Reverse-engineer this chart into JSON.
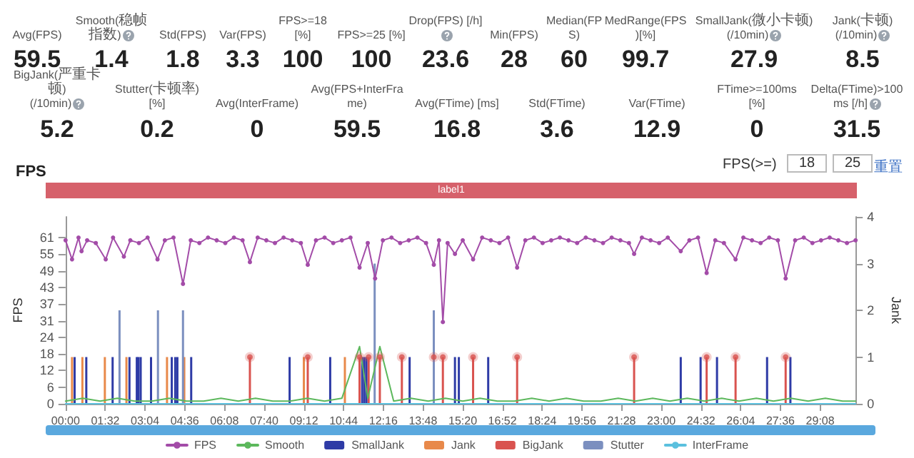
{
  "chart_data": [
    {
      "type": "other",
      "annotations": [
        "Avg(FPS)",
        "59.5",
        "Smooth(稳帧指数)",
        "1.4",
        "Std(FPS)",
        "1.8",
        "Var(FPS)",
        "3.3",
        "FPS>=18 [%]",
        "100",
        "FPS>=25 [%]",
        "100",
        "Drop(FPS) [/h]",
        "23.6",
        "Min(FPS)",
        "28",
        "Median(FPS)",
        "60",
        "MedRange(FPS)[%]",
        "99.7",
        "SmallJank(微小卡顿)\n(/10min)",
        "27.9",
        "Jank(卡顿)\n(/10min)",
        "8.5",
        "BigJank(严重卡顿)\n(/10min)",
        "5.2",
        "Stutter(卡顿率) [%]",
        "0.2",
        "Avg(InterFrame)",
        "0",
        "Avg(FPS+InterFrame)",
        "59.5",
        "Avg(FTime) [ms]",
        "16.8",
        "Std(FTime)",
        "3.6",
        "Var(FTime)",
        "12.9",
        "FTime>=100ms [%]",
        "0",
        "Delta(FTime)>100ms [/h]",
        "31.5"
      ]
    },
    {
      "type": "line",
      "title": "FPS",
      "ylabel": "FPS",
      "y2label": "Jank",
      "legend": "bottom",
      "annotations": [
        "FPS(>=)",
        "18",
        "25",
        "重置",
        "label1"
      ],
      "xlim": [
        0,
        1830
      ],
      "xticks": [
        {
          "value": 0,
          "label": "00:00"
        },
        {
          "value": 92,
          "label": "01:32"
        },
        {
          "value": 184,
          "label": "03:04"
        },
        {
          "value": 276,
          "label": "04:36"
        },
        {
          "value": 368,
          "label": "06:08"
        },
        {
          "value": 460,
          "label": "07:40"
        },
        {
          "value": 552,
          "label": "09:12"
        },
        {
          "value": 644,
          "label": "10:44"
        },
        {
          "value": 736,
          "label": "12:16"
        },
        {
          "value": 828,
          "label": "13:48"
        },
        {
          "value": 920,
          "label": "15:20"
        },
        {
          "value": 1012,
          "label": "16:52"
        },
        {
          "value": 1104,
          "label": "18:24"
        },
        {
          "value": 1196,
          "label": "19:56"
        },
        {
          "value": 1288,
          "label": "21:28"
        },
        {
          "value": 1380,
          "label": "23:00"
        },
        {
          "value": 1472,
          "label": "24:32"
        },
        {
          "value": 1564,
          "label": "26:04"
        },
        {
          "value": 1656,
          "label": "27:36"
        },
        {
          "value": 1748,
          "label": "29:08"
        }
      ],
      "ylim": [
        0,
        68.6
      ],
      "yticks": [
        0,
        {
          "value": 6.1,
          "label": "6"
        },
        {
          "value": 12.2,
          "label": "12"
        },
        {
          "value": 18.3,
          "label": "18"
        },
        {
          "value": 24.4,
          "label": "24"
        },
        {
          "value": 30.5,
          "label": "31"
        },
        {
          "value": 36.6,
          "label": "37"
        },
        {
          "value": 42.7,
          "label": "43"
        },
        {
          "value": 48.8,
          "label": "49"
        },
        {
          "value": 54.9,
          "label": "55"
        },
        61
      ],
      "y2lim": [
        0,
        4
      ],
      "y2ticks": [
        0,
        1,
        2,
        3,
        4
      ],
      "series": [
        {
          "name": "FPS",
          "type": "line",
          "marker": "circle",
          "color": "#a34ca8",
          "x": [
            0,
            15,
            30,
            37,
            50,
            70,
            93,
            110,
            135,
            150,
            170,
            190,
            213,
            230,
            250,
            272,
            290,
            310,
            330,
            350,
            370,
            390,
            410,
            427,
            445,
            465,
            485,
            505,
            525,
            545,
            561,
            580,
            600,
            620,
            640,
            660,
            681,
            700,
            717,
            735,
            755,
            775,
            795,
            815,
            835,
            853,
            865,
            874,
            885,
            902,
            920,
            944,
            965,
            985,
            1005,
            1025,
            1046,
            1065,
            1085,
            1105,
            1125,
            1145,
            1165,
            1185,
            1205,
            1225,
            1245,
            1265,
            1285,
            1305,
            1317,
            1335,
            1355,
            1375,
            1395,
            1425,
            1445,
            1465,
            1485,
            1505,
            1525,
            1552,
            1570,
            1590,
            1610,
            1630,
            1650,
            1668,
            1690,
            1710,
            1730,
            1750,
            1770,
            1790,
            1810,
            1830
          ],
          "values": [
            60,
            53,
            61,
            56,
            60,
            59,
            53,
            61,
            54,
            60,
            59,
            61,
            53,
            60,
            61,
            44,
            60,
            59,
            61,
            60,
            59,
            61,
            60,
            52,
            61,
            60,
            59,
            61,
            60,
            59,
            51,
            60,
            61,
            59,
            60,
            61,
            50,
            59,
            46,
            60,
            61,
            59,
            60,
            61,
            59,
            51,
            60,
            30,
            59,
            55,
            60,
            53,
            61,
            60,
            59,
            61,
            50,
            60,
            61,
            59,
            60,
            61,
            60,
            59,
            61,
            60,
            59,
            61,
            60,
            59,
            55,
            61,
            60,
            59,
            61,
            56,
            60,
            61,
            48,
            60,
            59,
            53,
            61,
            60,
            59,
            61,
            60,
            46,
            60,
            61,
            59,
            60,
            61,
            60,
            59,
            60
          ]
        },
        {
          "name": "Smooth",
          "type": "line",
          "marker": "none",
          "color": "#5cb85c",
          "x": [
            0,
            40,
            80,
            120,
            160,
            200,
            240,
            280,
            320,
            360,
            400,
            440,
            480,
            520,
            560,
            600,
            640,
            681,
            700,
            728,
            760,
            800,
            840,
            880,
            920,
            960,
            1000,
            1040,
            1080,
            1120,
            1160,
            1200,
            1240,
            1280,
            1320,
            1360,
            1400,
            1440,
            1480,
            1520,
            1560,
            1600,
            1640,
            1680,
            1720,
            1760,
            1800,
            1830
          ],
          "values": [
            1,
            2,
            1,
            2,
            1,
            1,
            2,
            1,
            1,
            2,
            1,
            2,
            1,
            1,
            2,
            1,
            2,
            21,
            2,
            21,
            1,
            2,
            1,
            2,
            1,
            2,
            1,
            1,
            2,
            1,
            2,
            1,
            1,
            2,
            1,
            2,
            1,
            2,
            1,
            2,
            1,
            2,
            1,
            2,
            1,
            2,
            1,
            1
          ]
        },
        {
          "name": "SmallJank",
          "type": "bar",
          "axis": "y2",
          "color": "#2e3ba6",
          "x": [
            21,
            48,
            109,
            148,
            165,
            169,
            174,
            198,
            246,
            254,
            259,
            291,
            519,
            613,
            687,
            692,
            697,
            797,
            902,
            911,
            979,
            1425,
            1471,
            1509,
            1625,
            1679
          ],
          "values": [
            1,
            1,
            1,
            1,
            1,
            1,
            1,
            1,
            1,
            1,
            1,
            1,
            1,
            1,
            1,
            1,
            1,
            1,
            1,
            1,
            1,
            1,
            1,
            1,
            1,
            1
          ]
        },
        {
          "name": "Jank",
          "type": "bar",
          "axis": "y2",
          "color": "#e8894a",
          "x": [
            15,
            39,
            91,
            141,
            235,
            275,
            552,
            647
          ],
          "values": [
            1,
            1,
            1,
            1,
            1,
            1,
            1,
            1
          ]
        },
        {
          "name": "BigJank",
          "type": "lollipop",
          "axis": "y2",
          "color": "#d9534f",
          "x": [
            427,
            561,
            681,
            702,
            728,
            779,
            853,
            874,
            944,
            1046,
            1317,
            1485,
            1552,
            1668
          ],
          "values": [
            1,
            1,
            1,
            1,
            1,
            1,
            1,
            1,
            1,
            1,
            1,
            1,
            1,
            1
          ]
        },
        {
          "name": "Stutter",
          "type": "bar",
          "axis": "y2",
          "color": "#7b8fbf",
          "x": [
            125,
            214,
            272,
            716,
            853
          ],
          "values": [
            2,
            2,
            2,
            3,
            2
          ]
        },
        {
          "name": "InterFrame",
          "type": "line",
          "marker": "none",
          "color": "#5bc0de",
          "x": [
            0,
            1830
          ],
          "values": [
            0,
            0
          ]
        }
      ]
    }
  ]
}
